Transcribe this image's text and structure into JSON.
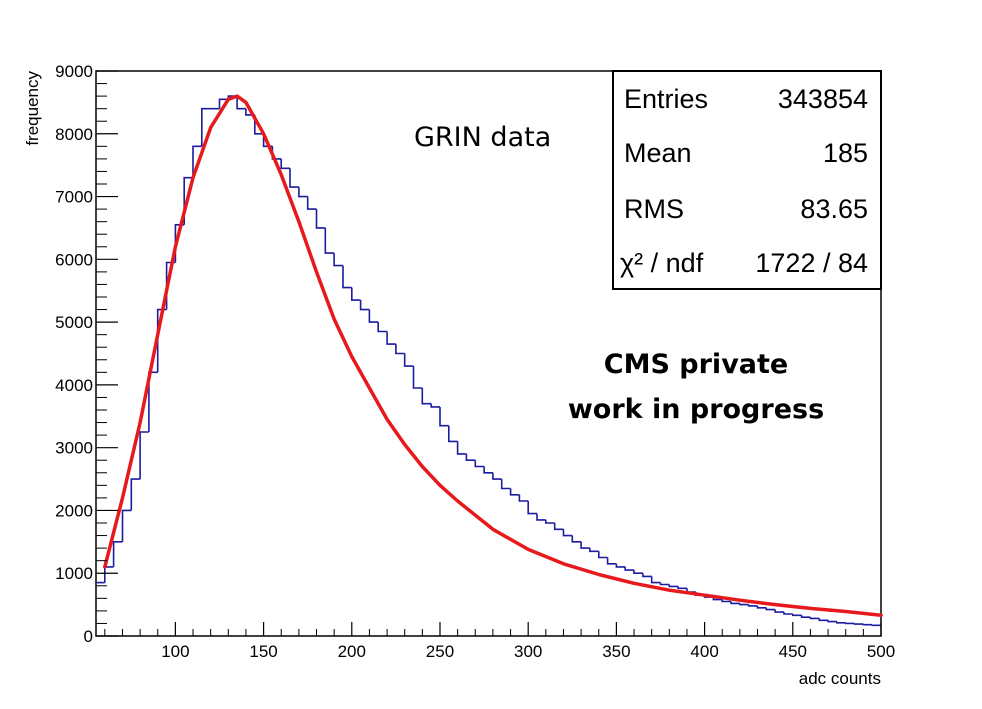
{
  "chart_data": {
    "type": "histogram",
    "xlabel": "adc counts",
    "ylabel": "frequency",
    "xlim": [
      55,
      500
    ],
    "ylim": [
      0,
      9000
    ],
    "x_ticks": [
      100,
      150,
      200,
      250,
      300,
      350,
      400,
      450,
      500
    ],
    "y_ticks": [
      0,
      1000,
      2000,
      3000,
      4000,
      5000,
      6000,
      7000,
      8000,
      9000
    ],
    "grid": false,
    "bin_width": 5,
    "series": [
      {
        "kind": "histogram",
        "color": "#1c1ca0",
        "bin_edges_start": 55,
        "values": [
          850,
          1100,
          1500,
          2000,
          2500,
          3250,
          4200,
          5200,
          5950,
          6550,
          7300,
          7800,
          8400,
          8400,
          8550,
          8600,
          8400,
          8300,
          8000,
          7800,
          7600,
          7450,
          7150,
          7000,
          6800,
          6500,
          6100,
          5900,
          5550,
          5350,
          5200,
          5000,
          4850,
          4650,
          4500,
          4300,
          3950,
          3700,
          3650,
          3350,
          3100,
          2900,
          2800,
          2700,
          2600,
          2500,
          2350,
          2250,
          2150,
          1950,
          1850,
          1800,
          1700,
          1600,
          1500,
          1400,
          1350,
          1250,
          1150,
          1100,
          1050,
          1000,
          950,
          850,
          820,
          790,
          760,
          700,
          650,
          620,
          580,
          550,
          520,
          500,
          480,
          450,
          420,
          380,
          350,
          330,
          300,
          280,
          250,
          230,
          210,
          200,
          190,
          180,
          170
        ]
      },
      {
        "kind": "fit",
        "color": "#e8191c",
        "x": [
          60,
          70,
          80,
          90,
          100,
          110,
          120,
          130,
          135,
          140,
          150,
          160,
          170,
          180,
          190,
          200,
          210,
          220,
          230,
          240,
          250,
          260,
          280,
          300,
          320,
          340,
          360,
          380,
          400,
          420,
          440,
          460,
          480,
          500
        ],
        "y": [
          1100,
          2200,
          3400,
          4800,
          6200,
          7300,
          8100,
          8550,
          8600,
          8500,
          8000,
          7350,
          6600,
          5800,
          5050,
          4450,
          3950,
          3450,
          3050,
          2700,
          2400,
          2150,
          1700,
          1380,
          1150,
          980,
          840,
          730,
          650,
          570,
          500,
          440,
          390,
          330
        ]
      }
    ],
    "stats_box": {
      "position": "top-right",
      "rows": [
        {
          "label": "Entries",
          "value": "343854"
        },
        {
          "label": "Mean",
          "value": "185"
        },
        {
          "label": "RMS",
          "value": "83.65"
        },
        {
          "label": "χ² / ndf",
          "value": "1722 / 84"
        }
      ]
    },
    "annotations": [
      "GRIN data",
      "CMS private",
      "work in progress"
    ]
  }
}
